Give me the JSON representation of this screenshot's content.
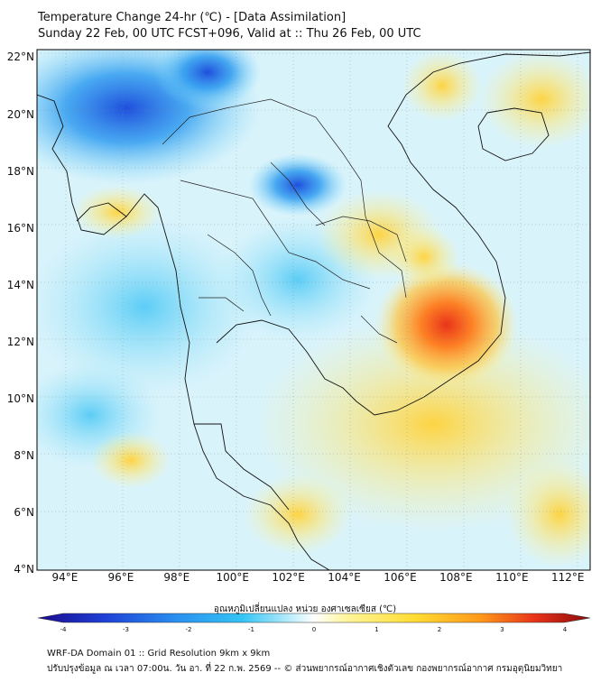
{
  "title": {
    "line1": "Temperature Change 24-hr (℃) - [Data Assimilation]",
    "line2": "Sunday 22 Feb, 00 UTC FCST+096, Valid at :: Thu 26 Feb, 00 UTC"
  },
  "axes": {
    "lat_labels": [
      "22°N",
      "20°N",
      "18°N",
      "16°N",
      "14°N",
      "12°N",
      "10°N",
      "8°N",
      "6°N",
      "4°N"
    ],
    "lon_labels": [
      "94°E",
      "96°E",
      "98°E",
      "100°E",
      "102°E",
      "104°E",
      "106°E",
      "108°E",
      "110°E",
      "112°E"
    ],
    "lat_values": [
      22,
      20,
      18,
      16,
      14,
      12,
      10,
      8,
      6,
      4
    ],
    "lon_values": [
      94,
      96,
      98,
      100,
      102,
      104,
      106,
      108,
      110,
      112
    ],
    "lat_range": [
      4,
      22.3
    ],
    "lon_range": [
      93,
      112.8
    ]
  },
  "colorbar": {
    "label": "อุณหภูมิเปลี่ยนแปลง หน่วย องศาเซลเซียส (℃)",
    "ticks": [
      "-4",
      "-3",
      "-2",
      "-1",
      "0",
      "1",
      "2",
      "3",
      "4"
    ],
    "tick_values": [
      -4,
      -3,
      -2,
      -1,
      0,
      1,
      2,
      3,
      4
    ],
    "colors": [
      "#1a0a8c",
      "#1f3fd6",
      "#2a8ff0",
      "#33c4f5",
      "#9fe6fa",
      "#ffffff",
      "#fff59a",
      "#ffdd33",
      "#ff9a1a",
      "#e8331a",
      "#8a0a0a"
    ]
  },
  "footer": {
    "line1": "WRF-DA Domain 01 :: Grid Resolution 9km x 9km",
    "line2": "ปรับปรุงข้อมูล ณ เวลา 07:00น. วัน อา. ที่ 22 ก.พ. 2569 -- © ส่วนพยากรณ์อากาศเชิงตัวเลข กองพยากรณ์อากาศ กรมอุตุนิยมวิทยา"
  }
}
